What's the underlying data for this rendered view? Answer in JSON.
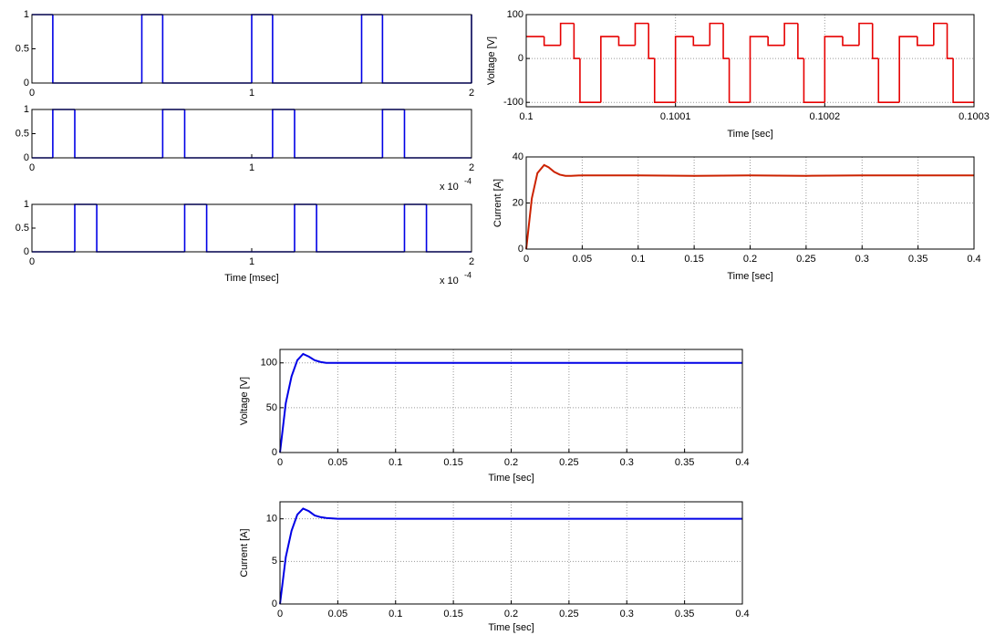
{
  "chart_data": [
    {
      "type": "step",
      "color": "#0000e6",
      "grid": false,
      "x": [
        0,
        0.095,
        0.5,
        0.595,
        1,
        1.095,
        1.5,
        1.595,
        2
      ],
      "values": [
        1,
        0,
        1,
        0,
        1,
        0,
        1,
        0,
        1
      ],
      "xlim": [
        0,
        2
      ],
      "xticks": [
        0,
        1,
        2
      ],
      "ylim": [
        0,
        1
      ],
      "yticks": [
        0,
        0.5,
        1
      ]
    },
    {
      "type": "step",
      "color": "#0000e6",
      "grid": false,
      "x": [
        0,
        0.095,
        0.195,
        0.595,
        0.695,
        1.095,
        1.195,
        1.595,
        1.695
      ],
      "values": [
        0,
        1,
        0,
        1,
        0,
        1,
        0,
        1,
        0
      ],
      "xlim": [
        0,
        2
      ],
      "xticks": [
        0,
        1,
        2
      ],
      "ylim": [
        0,
        1
      ],
      "yticks": [
        0,
        0.5,
        1
      ],
      "x_multiplier": "x 10",
      "x_multiplier_power": "-4"
    },
    {
      "type": "step",
      "color": "#0000e6",
      "grid": false,
      "xlabel": "Time [msec]",
      "x": [
        0,
        0.195,
        0.295,
        0.695,
        0.795,
        1.195,
        1.295,
        1.695,
        1.795
      ],
      "values": [
        0,
        1,
        0,
        1,
        0,
        1,
        0,
        1,
        0
      ],
      "xlim": [
        0,
        2
      ],
      "xticks": [
        0,
        1,
        2
      ],
      "ylim": [
        0,
        1
      ],
      "yticks": [
        0,
        0.5,
        1
      ],
      "x_multiplier": "x 10",
      "x_multiplier_power": "-4"
    },
    {
      "type": "step",
      "color": "#e60000",
      "grid": true,
      "xlabel": "Time [sec]",
      "ylabel": "Voltage [V]",
      "x": [
        0.1,
        0.100012,
        0.100023,
        0.100032,
        0.100036,
        0.10005,
        0.100062,
        0.100073,
        0.100082,
        0.100086,
        0.1001,
        0.100112,
        0.100123,
        0.100132,
        0.100136,
        0.10015,
        0.100162,
        0.100173,
        0.100182,
        0.100186,
        0.1002,
        0.100212,
        0.100223,
        0.100232,
        0.100236,
        0.10025,
        0.100262,
        0.100273,
        0.100282,
        0.100286
      ],
      "values": [
        50,
        30,
        80,
        0,
        -100,
        50,
        30,
        80,
        0,
        -100,
        50,
        30,
        80,
        0,
        -100,
        50,
        30,
        80,
        0,
        -100,
        50,
        30,
        80,
        0,
        -100,
        50,
        30,
        80,
        0,
        -100
      ],
      "xlim": [
        0.1,
        0.1003
      ],
      "xticks": [
        0.1,
        0.1001,
        0.1002,
        0.1003
      ],
      "ylim": [
        -110,
        100
      ],
      "yticks": [
        -100,
        0,
        100
      ]
    },
    {
      "type": "line",
      "color": "#cc2200",
      "grid": true,
      "xlabel": "Time [sec]",
      "ylabel": "Current [A]",
      "x": [
        0,
        0.005,
        0.01,
        0.016,
        0.02,
        0.025,
        0.03,
        0.035,
        0.04,
        0.05,
        0.1,
        0.15,
        0.2,
        0.25,
        0.3,
        0.35,
        0.4
      ],
      "values": [
        0,
        22,
        33,
        36.5,
        35.5,
        33.5,
        32.3,
        31.8,
        31.8,
        32,
        32,
        31.8,
        32,
        31.8,
        32,
        32,
        32
      ],
      "xlim": [
        0,
        0.4
      ],
      "xticks": [
        0,
        0.05,
        0.1,
        0.15,
        0.2,
        0.25,
        0.3,
        0.35,
        0.4
      ],
      "ylim": [
        0,
        40
      ],
      "yticks": [
        0,
        20,
        40
      ]
    },
    {
      "type": "line",
      "color": "#0000e6",
      "grid": true,
      "xlabel": "Time [sec]",
      "ylabel": "Voltage [V]",
      "x": [
        0,
        0.005,
        0.01,
        0.015,
        0.02,
        0.025,
        0.03,
        0.035,
        0.04,
        0.05,
        0.1,
        0.15,
        0.2,
        0.25,
        0.3,
        0.35,
        0.4
      ],
      "values": [
        0,
        55,
        85,
        103,
        110,
        107,
        103,
        101,
        100,
        100,
        100,
        100,
        100,
        100,
        100,
        100,
        100
      ],
      "xlim": [
        0,
        0.4
      ],
      "xticks": [
        0,
        0.05,
        0.1,
        0.15,
        0.2,
        0.25,
        0.3,
        0.35,
        0.4
      ],
      "ylim": [
        0,
        115
      ],
      "yticks": [
        0,
        50,
        100
      ]
    },
    {
      "type": "line",
      "color": "#0000e6",
      "grid": true,
      "xlabel": "Time [sec]",
      "ylabel": "Current [A]",
      "x": [
        0,
        0.005,
        0.01,
        0.015,
        0.02,
        0.025,
        0.03,
        0.035,
        0.04,
        0.05,
        0.1,
        0.15,
        0.2,
        0.25,
        0.3,
        0.35,
        0.4
      ],
      "values": [
        0,
        5.5,
        8.6,
        10.5,
        11.2,
        10.9,
        10.4,
        10.2,
        10.1,
        10,
        10,
        10,
        10,
        10,
        10,
        10,
        10
      ],
      "xlim": [
        0,
        0.4
      ],
      "xticks": [
        0,
        0.05,
        0.1,
        0.15,
        0.2,
        0.25,
        0.3,
        0.35,
        0.4
      ],
      "ylim": [
        0,
        12
      ],
      "yticks": [
        0,
        5,
        10
      ]
    }
  ]
}
